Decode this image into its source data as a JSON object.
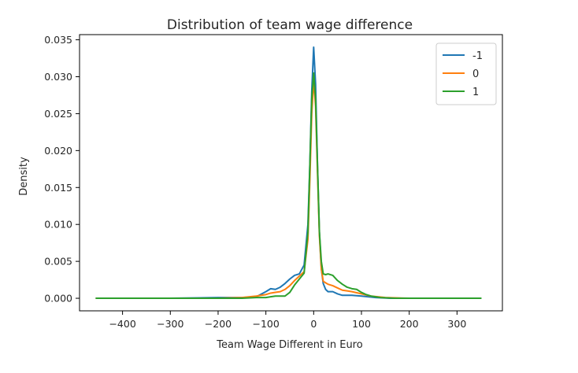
{
  "chart_data": {
    "type": "line",
    "title": "Distribution of team wage difference",
    "xlabel": "Team Wage Different in Euro",
    "ylabel": "Density",
    "xlim": [
      -490,
      395
    ],
    "ylim": [
      -0.0017,
      0.0357
    ],
    "x_ticks": [
      -400,
      -300,
      -200,
      -100,
      0,
      100,
      200,
      300
    ],
    "x_tick_labels": [
      "−400",
      "−300",
      "−200",
      "−100",
      "0",
      "100",
      "200",
      "300"
    ],
    "y_ticks": [
      0.0,
      0.005,
      0.01,
      0.015,
      0.02,
      0.025,
      0.03,
      0.035
    ],
    "y_tick_labels": [
      "0.000",
      "0.005",
      "0.010",
      "0.015",
      "0.020",
      "0.025",
      "0.030",
      "0.035"
    ],
    "grid": false,
    "legend_position": "top-right",
    "series": [
      {
        "name": "-1",
        "color": "#1f77b4",
        "x": [
          -455,
          -400,
          -300,
          -200,
          -150,
          -120,
          -100,
          -90,
          -80,
          -70,
          -60,
          -50,
          -40,
          -30,
          -20,
          -12,
          -8,
          -4,
          0,
          4,
          8,
          12,
          16,
          20,
          25,
          30,
          40,
          50,
          60,
          70,
          80,
          100,
          130,
          160,
          200,
          250,
          285
        ],
        "y": [
          0.0,
          0.0,
          0.0,
          0.0001,
          0.0001,
          0.0002,
          0.0009,
          0.0013,
          0.0012,
          0.0015,
          0.002,
          0.0026,
          0.0031,
          0.0033,
          0.0045,
          0.01,
          0.018,
          0.028,
          0.034,
          0.029,
          0.018,
          0.009,
          0.004,
          0.002,
          0.0012,
          0.0009,
          0.0009,
          0.0006,
          0.0004,
          0.0004,
          0.0004,
          0.0003,
          0.0001,
          0.0,
          0.0,
          0.0,
          0.0
        ]
      },
      {
        "name": "0",
        "color": "#ff7f0e",
        "x": [
          -455,
          -400,
          -300,
          -200,
          -150,
          -120,
          -100,
          -90,
          -80,
          -70,
          -60,
          -50,
          -40,
          -30,
          -20,
          -12,
          -8,
          -4,
          0,
          4,
          8,
          12,
          16,
          20,
          25,
          30,
          40,
          50,
          60,
          70,
          80,
          100,
          120,
          150,
          200,
          250,
          285
        ],
        "y": [
          0.0,
          0.0,
          0.0,
          0.0,
          0.0001,
          0.0003,
          0.0005,
          0.0007,
          0.0008,
          0.0009,
          0.0012,
          0.0017,
          0.0024,
          0.003,
          0.0036,
          0.008,
          0.016,
          0.025,
          0.0295,
          0.026,
          0.017,
          0.0085,
          0.004,
          0.0023,
          0.0021,
          0.0019,
          0.0017,
          0.0014,
          0.0011,
          0.001,
          0.0009,
          0.0006,
          0.0003,
          0.0001,
          0.0,
          0.0,
          0.0
        ]
      },
      {
        "name": "1",
        "color": "#2ca02c",
        "x": [
          -455,
          -400,
          -300,
          -200,
          -150,
          -120,
          -100,
          -90,
          -80,
          -70,
          -60,
          -50,
          -40,
          -30,
          -20,
          -12,
          -8,
          -4,
          0,
          4,
          8,
          12,
          16,
          20,
          25,
          30,
          40,
          50,
          60,
          70,
          80,
          90,
          100,
          110,
          120,
          140,
          170,
          200,
          300,
          350
        ],
        "y": [
          0.0,
          0.0,
          0.0,
          0.0,
          0.0,
          0.0001,
          0.0001,
          0.0002,
          0.0003,
          0.0003,
          0.0003,
          0.0008,
          0.0018,
          0.0026,
          0.0034,
          0.009,
          0.018,
          0.027,
          0.0305,
          0.027,
          0.018,
          0.009,
          0.005,
          0.0033,
          0.0032,
          0.0033,
          0.0031,
          0.0024,
          0.0019,
          0.0015,
          0.0013,
          0.0012,
          0.0008,
          0.0005,
          0.0003,
          0.0001,
          0.0,
          0.0,
          0.0,
          0.0
        ]
      }
    ]
  }
}
